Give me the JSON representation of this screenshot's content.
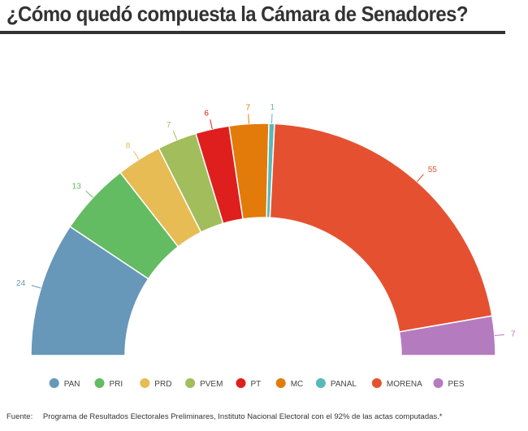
{
  "title": "¿Cómo quedó compuesta la Cámara de Senadores?",
  "source": {
    "label": "Fuente:",
    "text": "Programa de Resultados Electorales Preliminares, Instituto Nacional Electoral con el 92% de las actas computadas.*"
  },
  "chart_data": {
    "type": "pie",
    "variant": "semicircle-donut",
    "categories": [
      "PAN",
      "PRI",
      "PRD",
      "PVEM",
      "PT",
      "MC",
      "PANAL",
      "MORENA",
      "PES"
    ],
    "values": [
      24,
      13,
      8,
      7,
      6,
      7,
      1,
      55,
      7
    ],
    "colors": [
      "#6797b9",
      "#63bb62",
      "#e7bc55",
      "#a2bd5c",
      "#df1f1d",
      "#e27b09",
      "#5ab8b8",
      "#e55130",
      "#b57bbf"
    ],
    "legend_position": "bottom"
  }
}
